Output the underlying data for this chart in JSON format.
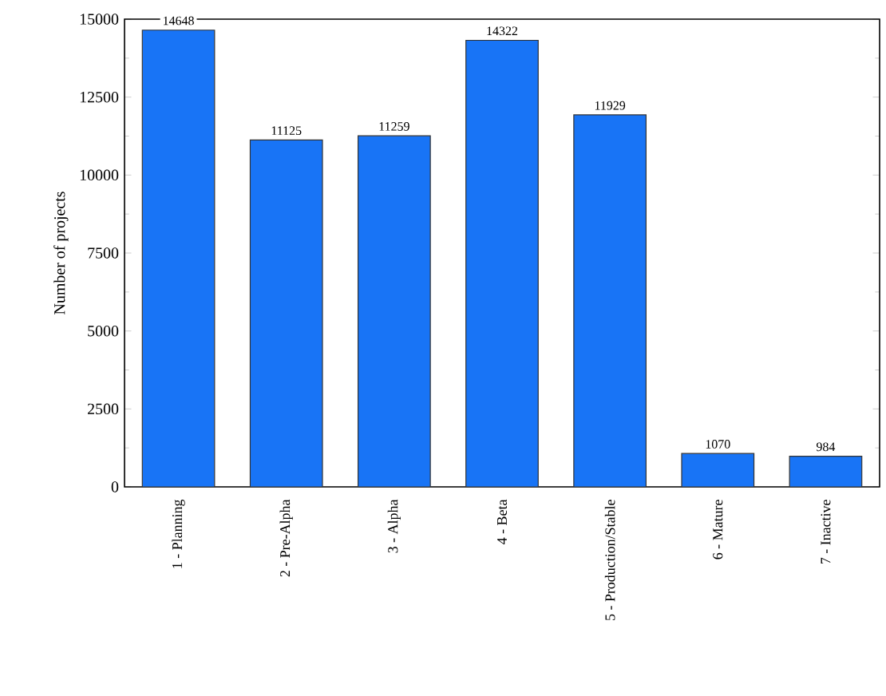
{
  "chart_data": {
    "type": "bar",
    "ylabel": "Number of projects",
    "categories": [
      "1 - Planning",
      "2 - Pre-Alpha",
      "3 - Alpha",
      "4 - Beta",
      "5 - Production/Stable",
      "6 - Mature",
      "7 - Inactive"
    ],
    "values": [
      14648,
      11125,
      11259,
      14322,
      11929,
      1070,
      984
    ],
    "color": "#1874f6",
    "ylim": [
      0,
      15000
    ],
    "yticks": [
      0,
      2500,
      5000,
      7500,
      10000,
      12500,
      15000
    ],
    "data_labels": true,
    "grid": false
  }
}
